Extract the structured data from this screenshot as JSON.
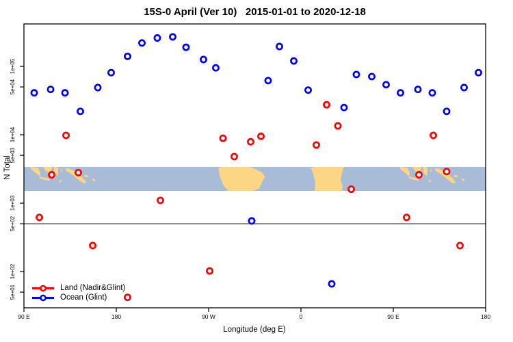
{
  "title": "15S-0 April (Ver 10)   2015-01-01 to 2020-12-18",
  "legend": {
    "items": [
      {
        "label": "Land (Nadir&Glint)",
        "color": "#FF0000"
      },
      {
        "label": "Ocean (Glint)",
        "color": "#0000FF"
      }
    ]
  },
  "chart_data": {
    "type": "scatter",
    "title": "15S-0 April (Ver 10)   2015-01-01 to 2020-12-18",
    "xlabel": "Longitude (deg E)",
    "ylabel": "N Total",
    "x_axis": {
      "note": "axis wraps eastward starting at 90E; axis_longitude runs 90..540 deg E",
      "range_axis_lon": [
        90,
        540
      ],
      "ticks": [
        {
          "axis_lon": 90,
          "label": "90 E"
        },
        {
          "axis_lon": 180,
          "label": "180"
        },
        {
          "axis_lon": 270,
          "label": "90 W"
        },
        {
          "axis_lon": 360,
          "label": "0"
        },
        {
          "axis_lon": 450,
          "label": "90 E"
        },
        {
          "axis_lon": 540,
          "label": "180"
        }
      ]
    },
    "y_axis": {
      "scale": "log10",
      "range": [
        29,
        420000
      ],
      "ticks": [
        {
          "value": 50,
          "label": "5e+01"
        },
        {
          "value": 100,
          "label": "1e+02"
        },
        {
          "value": 500,
          "label": "5e+02"
        },
        {
          "value": 1000,
          "label": "1e+03"
        },
        {
          "value": 5000,
          "label": "5e+03"
        },
        {
          "value": 10000,
          "label": "1e+04"
        },
        {
          "value": 50000,
          "label": "5e+04"
        },
        {
          "value": 100000,
          "label": "1e+05"
        }
      ]
    },
    "reference_line_y": 500,
    "point_format": [
      "axis_longitude_deg_E",
      "N_total"
    ],
    "series": [
      {
        "name": "Land (Nadir&Glint)",
        "color": "#FF0000",
        "points": [
          [
            105,
            620
          ],
          [
            117,
            2600
          ],
          [
            131,
            9800
          ],
          [
            143,
            2800
          ],
          [
            157,
            240
          ],
          [
            191,
            42
          ],
          [
            223,
            1100
          ],
          [
            271,
            102
          ],
          [
            284,
            8900
          ],
          [
            295,
            4800
          ],
          [
            311,
            7900
          ],
          [
            321,
            9500
          ],
          [
            375,
            7100
          ],
          [
            385,
            27500
          ],
          [
            396,
            13500
          ],
          [
            409,
            1600
          ],
          [
            463,
            620
          ],
          [
            475,
            2600
          ],
          [
            489,
            9800
          ],
          [
            502,
            2900
          ],
          [
            515,
            240
          ]
        ]
      },
      {
        "name": "Ocean (Glint)",
        "color": "#0000FF",
        "points": [
          [
            100,
            41000
          ],
          [
            116,
            46000
          ],
          [
            130,
            41000
          ],
          [
            145,
            22000
          ],
          [
            162,
            49000
          ],
          [
            175,
            81000
          ],
          [
            191,
            140000
          ],
          [
            205,
            220000
          ],
          [
            220,
            260000
          ],
          [
            235,
            270000
          ],
          [
            248,
            190000
          ],
          [
            265,
            126000
          ],
          [
            277,
            95000
          ],
          [
            312,
            550
          ],
          [
            328,
            62000
          ],
          [
            339,
            195000
          ],
          [
            353,
            120000
          ],
          [
            367,
            45000
          ],
          [
            390,
            66
          ],
          [
            402,
            25000
          ],
          [
            414,
            76000
          ],
          [
            429,
            71000
          ],
          [
            443,
            54000
          ],
          [
            457,
            41000
          ],
          [
            474,
            46000
          ],
          [
            488,
            41000
          ],
          [
            502,
            22000
          ],
          [
            519,
            49000
          ],
          [
            533,
            81000
          ]
        ]
      }
    ],
    "map_strip": {
      "description": "world coastline band 15S-0 drawn across plot",
      "lat_range": [
        -15,
        0
      ],
      "band_value_range": [
        1300,
        3100
      ],
      "ocean_color": "#a8bcd8",
      "land_color": "#fcd685",
      "lands": [
        {
          "name": "sumatra",
          "poly": [
            [
              96,
              0
            ],
            [
              104,
              -0.5
            ],
            [
              106,
              -4
            ],
            [
              105.5,
              -6
            ],
            [
              102,
              -4
            ],
            [
              97,
              -1.5
            ]
          ]
        },
        {
          "name": "java",
          "poly": [
            [
              105,
              -6
            ],
            [
              110,
              -6.8
            ],
            [
              114,
              -7.2
            ],
            [
              115.5,
              -8.8
            ],
            [
              110,
              -8
            ],
            [
              105.5,
              -7.2
            ]
          ]
        },
        {
          "name": "borneo",
          "poly": [
            [
              108.8,
              0
            ],
            [
              117.6,
              0
            ],
            [
              116.3,
              -2.5
            ],
            [
              114,
              -4
            ],
            [
              110.5,
              -2
            ]
          ]
        },
        {
          "name": "sulawesi",
          "poly": [
            [
              119,
              0
            ],
            [
              121.5,
              0
            ],
            [
              123.5,
              -1
            ],
            [
              122.8,
              -5.5
            ],
            [
              121,
              -5
            ],
            [
              119.5,
              -3
            ]
          ]
        },
        {
          "name": "maluku",
          "poly": [
            [
              126,
              -1
            ],
            [
              127.5,
              -2
            ],
            [
              126.5,
              -3.5
            ]
          ]
        },
        {
          "name": "timor",
          "poly": [
            [
              124,
              -8.7
            ],
            [
              127.3,
              -8.3
            ],
            [
              125.3,
              -9.9
            ]
          ]
        },
        {
          "name": "new-guinea",
          "poly": [
            [
              130.8,
              -0.8
            ],
            [
              134.5,
              -1.2
            ],
            [
              138,
              -2.2
            ],
            [
              141,
              -3
            ],
            [
              144,
              -5
            ],
            [
              147.5,
              -7
            ],
            [
              151,
              -10
            ],
            [
              148,
              -10.2
            ],
            [
              143,
              -8
            ],
            [
              138.5,
              -5.5
            ],
            [
              134,
              -3.5
            ],
            [
              131,
              -2.5
            ]
          ]
        },
        {
          "name": "new-britain",
          "poly": [
            [
              148.5,
              -5.5
            ],
            [
              152,
              -5
            ],
            [
              152.5,
              -6.5
            ],
            [
              149,
              -6.2
            ]
          ]
        },
        {
          "name": "solomons",
          "poly": [
            [
              157,
              -7
            ],
            [
              160,
              -8.5
            ],
            [
              158,
              -9
            ],
            [
              156.5,
              -7.8
            ]
          ]
        },
        {
          "name": "south-america",
          "poly": [
            [
              279.5,
              -1
            ],
            [
              282,
              0
            ],
            [
              310,
              0
            ],
            [
              316,
              -1.5
            ],
            [
              322,
              -3.5
            ],
            [
              325,
              -6
            ],
            [
              322,
              -9.5
            ],
            [
              319.5,
              -13.5
            ],
            [
              313,
              -15
            ],
            [
              289,
              -15
            ],
            [
              284,
              -11
            ],
            [
              280.5,
              -5
            ]
          ]
        },
        {
          "name": "africa",
          "poly": [
            [
              9.5,
              -0.7
            ],
            [
              14,
              0
            ],
            [
              41.5,
              0
            ],
            [
              40,
              -4
            ],
            [
              38.5,
              -8
            ],
            [
              40.5,
              -12
            ],
            [
              40,
              -15
            ],
            [
              13.5,
              -15
            ],
            [
              13.8,
              -9
            ],
            [
              11.8,
              -4
            ]
          ]
        },
        {
          "name": "madagascar",
          "poly": [
            [
              48.8,
              -11.8
            ],
            [
              50.2,
              -14
            ],
            [
              49.5,
              -15
            ],
            [
              46.8,
              -15
            ],
            [
              47.8,
              -13
            ]
          ]
        }
      ]
    }
  }
}
